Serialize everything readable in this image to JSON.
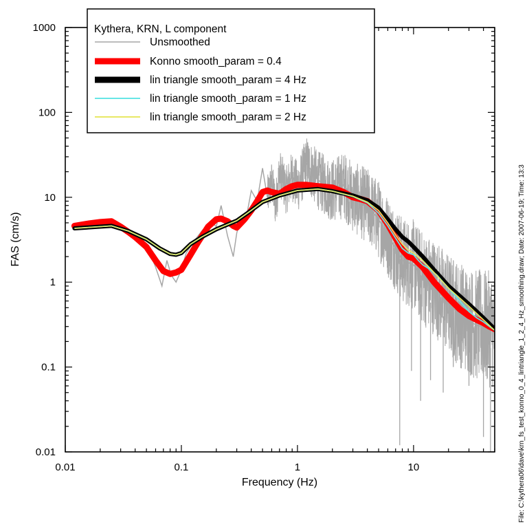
{
  "chart_data": {
    "type": "line",
    "xscale": "log",
    "yscale": "log",
    "xlim": [
      0.01,
      50
    ],
    "ylim": [
      0.01,
      1000
    ],
    "xlabel": "Frequency (Hz)",
    "ylabel": "FAS (cm/s)",
    "x_ticks": [
      "0.01",
      "0.1",
      "1",
      "10"
    ],
    "y_ticks": [
      "0.01",
      "0.1",
      "1",
      "10",
      "100",
      "1000"
    ],
    "legend_title": "Kythera, KRN, L component",
    "legend_position": "top-left",
    "grid": false,
    "side_note": "File: C:\\kythera06\\dave\\krn_fs_test_konno_0_4_lintriangle_1_2_4_Hz_smoothing.draw; Date: 2007-06-19; Time: 13:3",
    "series": [
      {
        "name": "Unsmoothed",
        "color": "#a6a6a6",
        "style": "thin",
        "x": [
          0.012,
          0.024,
          0.035,
          0.05,
          0.06,
          0.068,
          0.075,
          0.082,
          0.09,
          0.1,
          0.11,
          0.13,
          0.15,
          0.18,
          0.2,
          0.22,
          0.25,
          0.28,
          0.3,
          0.33,
          0.36,
          0.4,
          0.45,
          0.5,
          0.55,
          0.6,
          0.65,
          0.7,
          0.8,
          0.9,
          1.0,
          1.2,
          1.5,
          2.0,
          2.5,
          3.0,
          4.0,
          5.0,
          6.0,
          7.0,
          8.0,
          9.0,
          10,
          12,
          15,
          20,
          25,
          30,
          35,
          40,
          45,
          50
        ],
        "y": [
          4.5,
          5.0,
          4.0,
          2.8,
          1.5,
          0.9,
          1.8,
          1.2,
          1.0,
          1.4,
          2.2,
          3.1,
          4.0,
          5.2,
          4.5,
          8.0,
          3.5,
          2.0,
          3.8,
          6.0,
          5.5,
          12.0,
          9.0,
          22.0,
          10.0,
          15.0,
          8.0,
          20.0,
          12.0,
          18.0,
          13.0,
          25.0,
          16.0,
          12.0,
          14.0,
          10.0,
          8.0,
          5.5,
          3.5,
          2.5,
          1.8,
          1.7,
          1.6,
          1.1,
          0.9,
          0.55,
          0.42,
          0.35,
          0.31,
          0.3,
          0.28,
          0.27
        ],
        "noise_band": {
          "x_start": 0.55,
          "spikes": [
            [
              7.6,
              0.012
            ],
            [
              9.6,
              0.09
            ],
            [
              11.5,
              0.04
            ],
            [
              14,
              0.07
            ],
            [
              18,
              0.05
            ],
            [
              22,
              0.1
            ],
            [
              30,
              0.06
            ],
            [
              40,
              0.015
            ],
            [
              46,
              0.008
            ]
          ]
        }
      },
      {
        "name": "Konno smooth_param = 0.4",
        "color": "#ff0000",
        "style": "thick",
        "x": [
          0.012,
          0.016,
          0.02,
          0.025,
          0.03,
          0.035,
          0.04,
          0.05,
          0.06,
          0.07,
          0.08,
          0.09,
          0.1,
          0.12,
          0.14,
          0.17,
          0.2,
          0.22,
          0.25,
          0.28,
          0.3,
          0.35,
          0.4,
          0.45,
          0.5,
          0.55,
          0.6,
          0.7,
          0.8,
          0.9,
          1.0,
          1.2,
          1.5,
          2.0,
          2.5,
          3.0,
          3.5,
          4.0,
          5.0,
          6.0,
          7.0,
          8.0,
          9.0,
          10,
          12,
          15,
          20,
          25,
          30,
          35,
          40,
          45,
          50
        ],
        "y": [
          4.6,
          4.9,
          5.1,
          5.2,
          4.5,
          3.9,
          3.4,
          2.6,
          1.8,
          1.35,
          1.25,
          1.3,
          1.4,
          2.1,
          3.0,
          4.5,
          5.5,
          5.6,
          5.2,
          4.6,
          4.4,
          5.5,
          7.0,
          9.0,
          11.5,
          12.0,
          11.5,
          11.0,
          12.5,
          13.5,
          14.0,
          14.0,
          13.5,
          13.0,
          11.5,
          10.0,
          9.5,
          9.0,
          7.0,
          4.8,
          3.3,
          2.4,
          2.0,
          1.9,
          1.5,
          1.0,
          0.65,
          0.48,
          0.4,
          0.36,
          0.33,
          0.3,
          0.28
        ]
      },
      {
        "name": "lin triangle smooth_param = 4 Hz",
        "color": "#000000",
        "style": "thick",
        "x": [
          0.012,
          0.025,
          0.035,
          0.05,
          0.065,
          0.08,
          0.09,
          0.1,
          0.12,
          0.15,
          0.2,
          0.3,
          0.4,
          0.5,
          0.7,
          1.0,
          1.5,
          2.0,
          3.0,
          4.0,
          5.0,
          6.0,
          7.0,
          8.0,
          9.0,
          10,
          12,
          15,
          20,
          30,
          40,
          50
        ],
        "y": [
          4.3,
          4.6,
          4.0,
          3.2,
          2.5,
          2.15,
          2.1,
          2.2,
          2.8,
          3.4,
          4.2,
          5.3,
          7.0,
          8.8,
          10.5,
          12.0,
          12.5,
          11.8,
          10.5,
          9.2,
          7.5,
          5.5,
          4.2,
          3.4,
          3.0,
          2.6,
          2.0,
          1.4,
          0.9,
          0.55,
          0.38,
          0.28
        ]
      },
      {
        "name": "lin triangle smooth_param = 1 Hz",
        "color": "#66e6e6",
        "style": "thin",
        "x": [
          0.012,
          0.025,
          0.035,
          0.05,
          0.065,
          0.08,
          0.09,
          0.1,
          0.12,
          0.15,
          0.2,
          0.3,
          0.4,
          0.5,
          0.7,
          1.0,
          1.5,
          2.0,
          3.0,
          4.0,
          5.0,
          6.0,
          7.0,
          8.0,
          9.0,
          10,
          11,
          12,
          14,
          16,
          18,
          20,
          25,
          30,
          35,
          40,
          45,
          50
        ],
        "y": [
          4.3,
          4.6,
          4.0,
          3.2,
          2.5,
          2.15,
          2.1,
          2.2,
          2.8,
          3.4,
          4.2,
          5.3,
          7.0,
          8.8,
          10.5,
          12.0,
          12.5,
          11.8,
          10.2,
          8.6,
          6.5,
          4.6,
          3.3,
          2.5,
          2.2,
          2.1,
          1.8,
          1.6,
          1.4,
          1.2,
          1.0,
          0.85,
          0.6,
          0.45,
          0.38,
          0.34,
          0.3,
          0.27
        ]
      },
      {
        "name": "lin triangle smooth_param = 2 Hz",
        "color": "#e8e864",
        "style": "thin",
        "x": [
          0.012,
          0.025,
          0.035,
          0.05,
          0.065,
          0.08,
          0.09,
          0.1,
          0.12,
          0.15,
          0.2,
          0.3,
          0.4,
          0.5,
          0.7,
          1.0,
          1.5,
          2.0,
          3.0,
          4.0,
          5.0,
          6.0,
          7.0,
          8.0,
          9.0,
          10,
          12,
          15,
          20,
          30,
          40,
          50
        ],
        "y": [
          4.3,
          4.6,
          4.0,
          3.2,
          2.5,
          2.15,
          2.1,
          2.2,
          2.8,
          3.4,
          4.2,
          5.3,
          7.0,
          8.8,
          10.5,
          12.0,
          12.5,
          11.8,
          10.3,
          8.8,
          7.0,
          5.0,
          3.6,
          2.8,
          2.4,
          2.2,
          1.8,
          1.3,
          0.85,
          0.52,
          0.36,
          0.27
        ]
      }
    ]
  }
}
